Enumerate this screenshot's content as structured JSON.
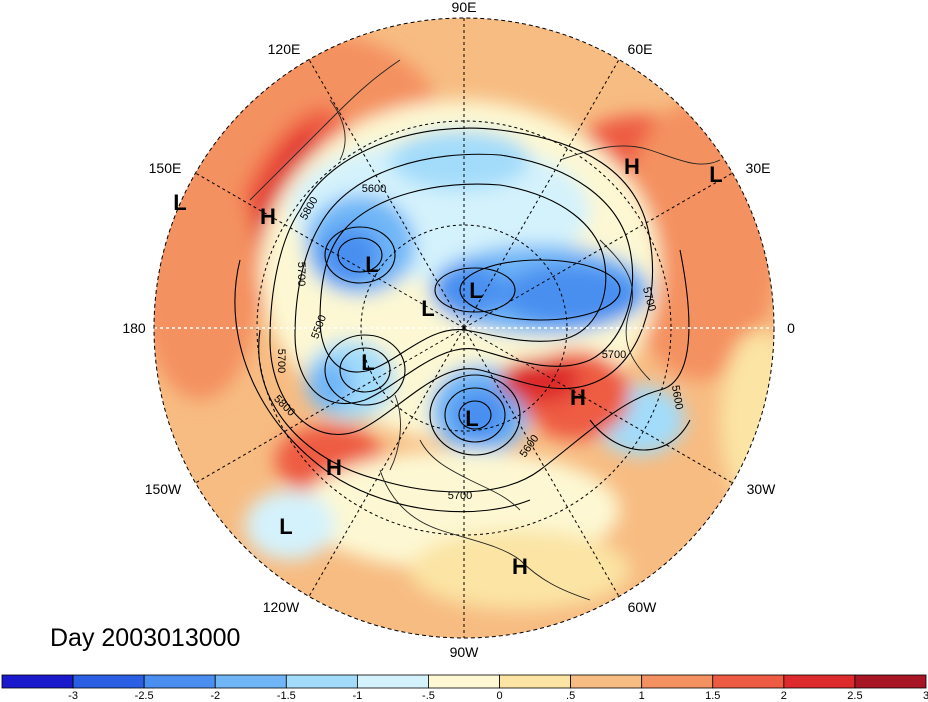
{
  "map": {
    "projection": "polar-stereographic",
    "longitude_labels": [
      "90E",
      "120E",
      "60E",
      "150E",
      "30E",
      "180",
      "0",
      "150W",
      "30W",
      "120W",
      "60W",
      "90W"
    ],
    "pressure_centers": [
      {
        "type": "H",
        "region": "Kamchatka"
      },
      {
        "type": "L",
        "region": "North Pacific"
      },
      {
        "type": "L",
        "region": "East Siberia"
      },
      {
        "type": "L",
        "region": "Arctic Ocean"
      },
      {
        "type": "L",
        "region": "Central Arctic"
      },
      {
        "type": "H",
        "region": "Scandinavia"
      },
      {
        "type": "L",
        "region": "Europe"
      },
      {
        "type": "L",
        "region": "Alaska"
      },
      {
        "type": "L",
        "region": "Hudson Bay"
      },
      {
        "type": "H",
        "region": "North Atlantic"
      },
      {
        "type": "H",
        "region": "Northeast Pacific"
      },
      {
        "type": "L",
        "region": "Subtropical Pacific"
      },
      {
        "type": "H",
        "region": "Caribbean"
      }
    ],
    "contour_labels": [
      "5800",
      "5600",
      "5700",
      "5500",
      "5700",
      "5800",
      "5600",
      "5700",
      "5700",
      "5600",
      "5700"
    ]
  },
  "date_label": "Day 2003013000",
  "colorbar": {
    "colors": [
      "#1a1acc",
      "#2b5fe3",
      "#4a8ff0",
      "#70b6f7",
      "#a3dcfa",
      "#d4f2fc",
      "#fdf8d3",
      "#fbe4a4",
      "#f7bc82",
      "#f49161",
      "#ee5b43",
      "#dd2a2c",
      "#a81525"
    ],
    "ticks": [
      "-3",
      "-2.5",
      "-2",
      "-1.5",
      "-1",
      "-.5",
      "0",
      ".5",
      "1",
      "1.5",
      "2",
      "2.5",
      "3"
    ]
  }
}
